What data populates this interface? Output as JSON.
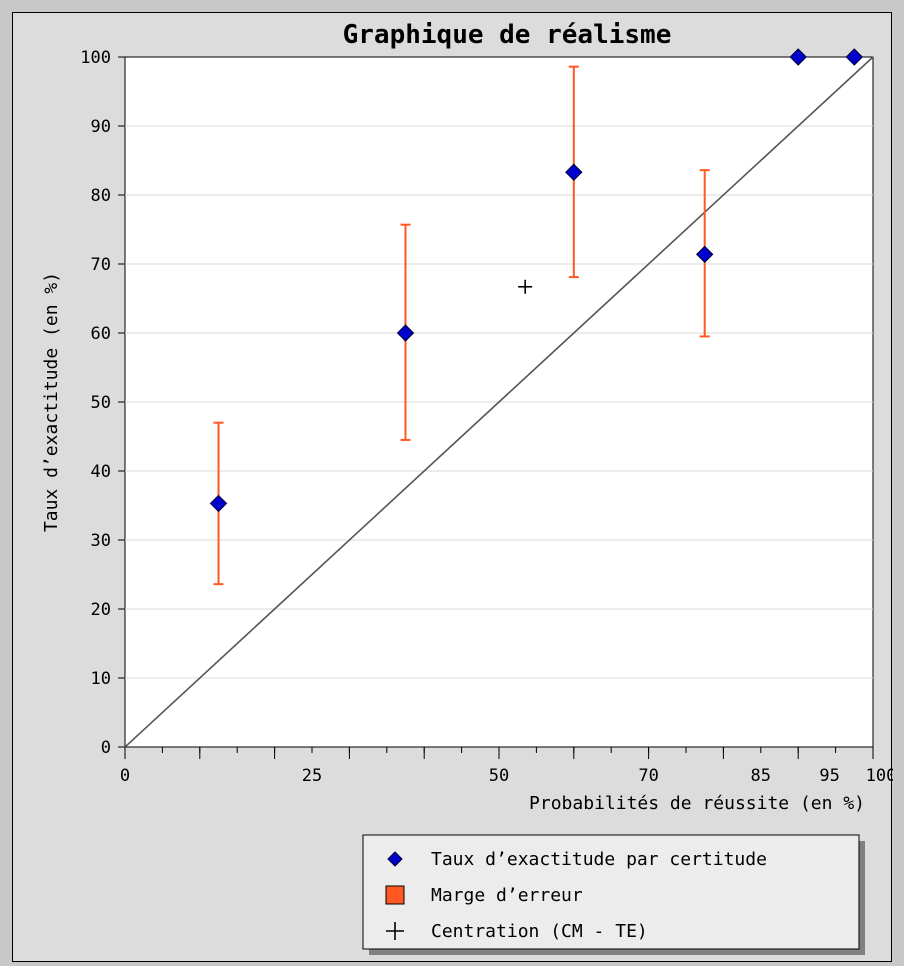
{
  "chart_data": {
    "type": "scatter",
    "title": "Graphique de réalisme",
    "xlabel": "Probabilités de réussite (en %)",
    "ylabel": "Taux d’exactitude (en %)",
    "xlim": [
      0,
      100
    ],
    "ylim": [
      0,
      100
    ],
    "x_ticks": [
      0,
      25,
      50,
      70,
      85,
      95,
      100
    ],
    "y_ticks": [
      0,
      10,
      20,
      30,
      40,
      50,
      60,
      70,
      80,
      90,
      100
    ],
    "grid": "horizontal",
    "legend_position": "bottom-right",
    "reference_line": {
      "from": [
        0,
        0
      ],
      "to": [
        100,
        100
      ]
    },
    "series": [
      {
        "name": "Taux d’exactitude par certitude",
        "marker": "diamond",
        "color": "#0000cc",
        "points": [
          {
            "x": 12.5,
            "y": 35.3
          },
          {
            "x": 37.5,
            "y": 60.0
          },
          {
            "x": 60.0,
            "y": 83.3
          },
          {
            "x": 77.5,
            "y": 71.4
          },
          {
            "x": 90.0,
            "y": 100.0
          },
          {
            "x": 97.5,
            "y": 100.0
          }
        ]
      },
      {
        "name": "Marge d’erreur",
        "marker": "errorbar",
        "color": "#ff5722",
        "bars": [
          {
            "x": 12.5,
            "low": 23.6,
            "high": 47.0
          },
          {
            "x": 37.5,
            "low": 44.5,
            "high": 75.7
          },
          {
            "x": 60.0,
            "low": 68.1,
            "high": 98.6
          },
          {
            "x": 77.5,
            "low": 59.5,
            "high": 83.6
          }
        ]
      },
      {
        "name": "Centration (CM - TE)",
        "marker": "plus",
        "color": "#000000",
        "points": [
          {
            "x": 53.5,
            "y": 66.7
          }
        ]
      }
    ]
  }
}
